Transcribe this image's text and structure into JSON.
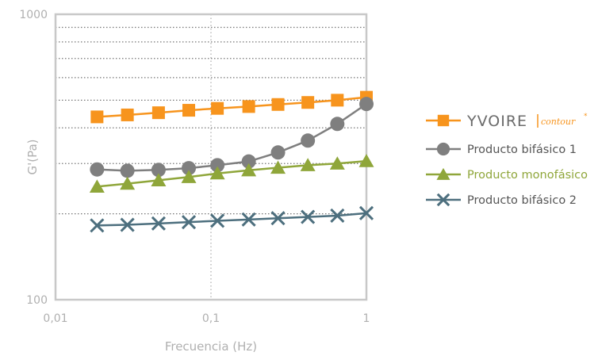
{
  "chart_data": {
    "type": "line",
    "title": "",
    "xlabel": "Frecuencia (Hz)",
    "ylabel": "G'(Pa)",
    "x_scale": "log",
    "y_scale": "log",
    "xlim": [
      0.01,
      1
    ],
    "ylim": [
      100,
      1000
    ],
    "x_ticks": [
      "0,01",
      "0,1",
      "1"
    ],
    "y_ticks": [
      "100",
      "1000"
    ],
    "grid": "dotted horizontal minor lines, dotted vertical line at 0,1",
    "legend_position": "right",
    "x": [
      0.0185,
      0.029,
      0.046,
      0.072,
      0.11,
      0.175,
      0.27,
      0.42,
      0.65,
      1.0
    ],
    "series": [
      {
        "name": "YVOIRE",
        "name_suffix": "contour",
        "name_mark": "*",
        "color": "#f7941d",
        "marker": "square",
        "values": [
          437,
          444,
          452,
          461,
          468,
          475,
          483,
          491,
          500,
          512
        ]
      },
      {
        "name": "Producto bifásico 1",
        "color": "#7f7f7f",
        "marker": "circle",
        "values": [
          286,
          283,
          285,
          289,
          296,
          305,
          328,
          361,
          413,
          485
        ]
      },
      {
        "name": "Producto monofásico",
        "color": "#8fa63a",
        "marker": "triangle",
        "values": [
          249,
          255,
          262,
          269,
          277,
          284,
          290,
          296,
          300,
          306
        ]
      },
      {
        "name": "Producto bifásico 2",
        "color": "#4d6f7e",
        "marker": "x",
        "values": [
          182,
          183,
          185,
          187,
          189,
          191,
          193,
          195,
          197,
          201
        ]
      }
    ]
  }
}
